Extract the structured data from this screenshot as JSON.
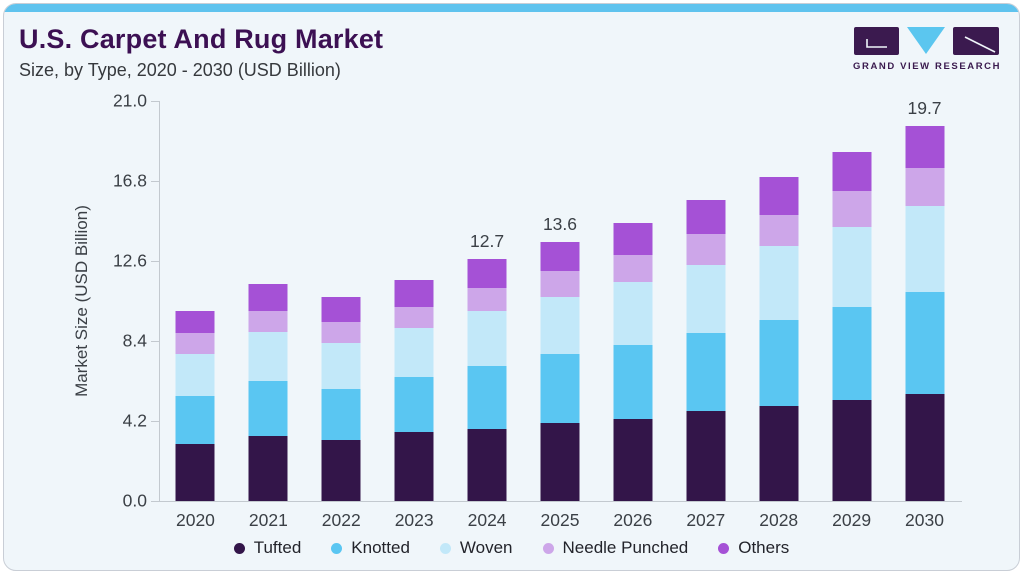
{
  "header": {
    "title": "U.S. Carpet And Rug Market",
    "subtitle": "Size, by Type, 2020 - 2030 (USD Billion)",
    "logo_text": "GRAND VIEW RESEARCH"
  },
  "colors": {
    "top_strip": "#5fc3ee",
    "title": "#3c1053",
    "card_background": "#f0f6fa",
    "axis_line": "#c3c9cf",
    "axis_text": "#3b4046",
    "logo_dark": "#3b1a4f",
    "logo_blue": "#5bc6ef"
  },
  "chart_data": {
    "type": "bar",
    "stacked": true,
    "title": "U.S. Carpet And Rug Market Size, by Type, 2020 - 2030 (USD Billion)",
    "ylabel": "Market Size (USD Billion)",
    "xlabel": "",
    "ylim": [
      0,
      21
    ],
    "yticks": [
      0.0,
      4.2,
      8.4,
      12.6,
      16.8,
      21.0
    ],
    "grid": false,
    "legend_position": "bottom",
    "categories": [
      "2020",
      "2021",
      "2022",
      "2023",
      "2024",
      "2025",
      "2026",
      "2027",
      "2028",
      "2029",
      "2030"
    ],
    "series": [
      {
        "name": "Tufted",
        "color": "#331549",
        "values": [
          3.0,
          3.4,
          3.2,
          3.6,
          3.8,
          4.1,
          4.3,
          4.7,
          5.0,
          5.3,
          5.6
        ]
      },
      {
        "name": "Knotted",
        "color": "#5ac6f2",
        "values": [
          2.5,
          2.9,
          2.7,
          2.9,
          3.3,
          3.6,
          3.9,
          4.1,
          4.5,
          4.9,
          5.4
        ]
      },
      {
        "name": "Woven",
        "color": "#c2e8f9",
        "values": [
          2.2,
          2.6,
          2.4,
          2.6,
          2.9,
          3.0,
          3.3,
          3.6,
          3.9,
          4.2,
          4.5
        ]
      },
      {
        "name": "Needle Punched",
        "color": "#cda6e9",
        "values": [
          1.1,
          1.1,
          1.1,
          1.1,
          1.2,
          1.4,
          1.4,
          1.6,
          1.6,
          1.9,
          2.0
        ]
      },
      {
        "name": "Others",
        "color": "#a551d6",
        "values": [
          1.2,
          1.4,
          1.3,
          1.4,
          1.5,
          1.5,
          1.7,
          1.8,
          2.0,
          2.0,
          2.2
        ]
      }
    ],
    "totals": [
      10.0,
      11.4,
      10.7,
      11.6,
      12.7,
      13.6,
      14.6,
      15.8,
      17.0,
      18.3,
      19.7
    ],
    "bar_labels": [
      "",
      "",
      "",
      "",
      "12.7",
      "13.6",
      "",
      "",
      "",
      "",
      "19.7"
    ]
  }
}
